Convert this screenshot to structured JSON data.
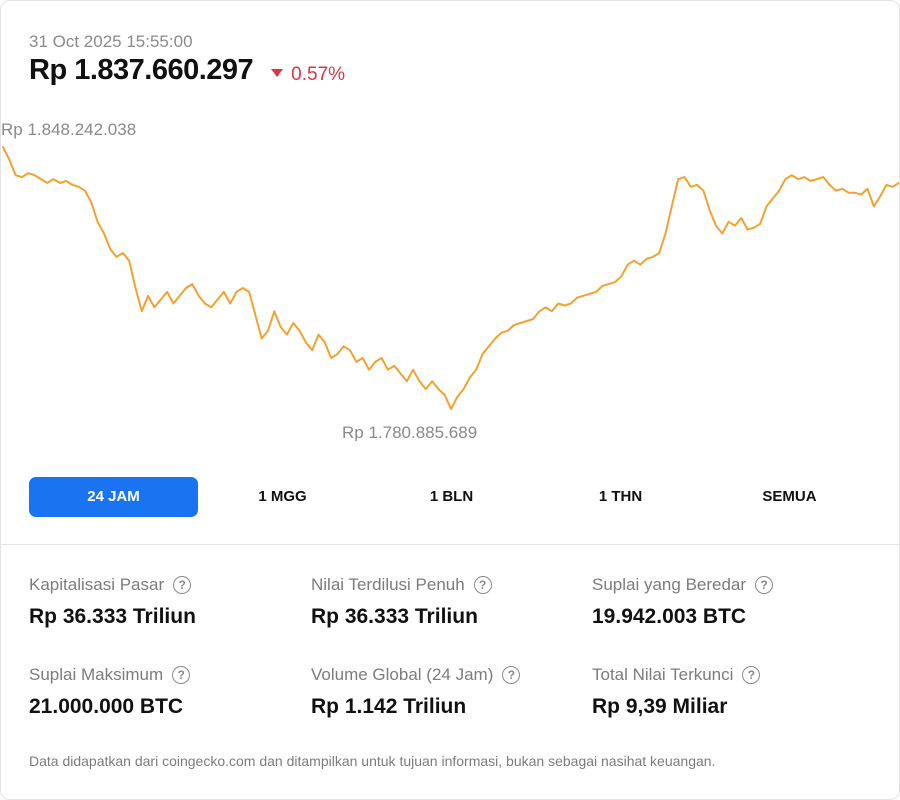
{
  "header": {
    "timestamp": "31 Oct 2025 15:55:00",
    "price": "Rp 1.837.660.297",
    "change": "0.57%",
    "change_direction": "down",
    "change_color": "#dc3545"
  },
  "chart_data": {
    "type": "line",
    "title": "",
    "xlabel": "",
    "ylabel": "",
    "line_color": "#f0a232",
    "high_label": "Rp 1.848.242.038",
    "low_label": "Rp 1.780.885.689",
    "high_value": 1848242038,
    "low_value": 1780885689,
    "grid": false,
    "series": [
      {
        "values": [
          1848242038,
          1845000000,
          1841000000,
          1840500000,
          1841500000,
          1841000000,
          1840000000,
          1839000000,
          1840000000,
          1839000000,
          1839500000,
          1838500000,
          1838000000,
          1837000000,
          1834000000,
          1829000000,
          1826000000,
          1822000000,
          1820000000,
          1821000000,
          1819000000,
          1812000000,
          1806000000,
          1810000000,
          1807000000,
          1809000000,
          1811000000,
          1808000000,
          1810000000,
          1812000000,
          1813000000,
          1810000000,
          1808000000,
          1807000000,
          1809000000,
          1811000000,
          1808000000,
          1811000000,
          1812000000,
          1811000000,
          1805000000,
          1799000000,
          1801000000,
          1806000000,
          1802000000,
          1800000000,
          1803000000,
          1801000000,
          1798000000,
          1796000000,
          1800000000,
          1798000000,
          1794000000,
          1795000000,
          1797000000,
          1796000000,
          1793000000,
          1794000000,
          1791000000,
          1793000000,
          1794000000,
          1791000000,
          1792000000,
          1790000000,
          1788000000,
          1791000000,
          1788000000,
          1786000000,
          1788000000,
          1786000000,
          1784500000,
          1780885689,
          1784000000,
          1786000000,
          1789000000,
          1791000000,
          1795000000,
          1797000000,
          1799000000,
          1800500000,
          1801000000,
          1802500000,
          1803000000,
          1803500000,
          1804000000,
          1806000000,
          1807000000,
          1806000000,
          1808000000,
          1807500000,
          1808000000,
          1809500000,
          1810000000,
          1810500000,
          1811000000,
          1812500000,
          1813000000,
          1813500000,
          1815000000,
          1818000000,
          1819000000,
          1818000000,
          1819500000,
          1820000000,
          1821000000,
          1826000000,
          1833000000,
          1840000000,
          1840500000,
          1838000000,
          1838500000,
          1837000000,
          1832000000,
          1828000000,
          1826000000,
          1829000000,
          1828000000,
          1830000000,
          1827000000,
          1827500000,
          1828500000,
          1833000000,
          1835000000,
          1837000000,
          1840000000,
          1841000000,
          1840000000,
          1840500000,
          1839500000,
          1840000000,
          1840500000,
          1838500000,
          1837000000,
          1837500000,
          1836500000,
          1836500000,
          1836000000,
          1837500000,
          1833000000,
          1835500000,
          1838500000,
          1838000000,
          1839000000
        ]
      }
    ]
  },
  "tabs": [
    {
      "label": "24 JAM",
      "active": true
    },
    {
      "label": "1 MGG",
      "active": false
    },
    {
      "label": "1 BLN",
      "active": false
    },
    {
      "label": "1 THN",
      "active": false
    },
    {
      "label": "SEMUA",
      "active": false
    }
  ],
  "stats": [
    {
      "label": "Kapitalisasi Pasar",
      "value": "Rp 36.333 Triliun"
    },
    {
      "label": "Nilai Terdilusi Penuh",
      "value": "Rp 36.333 Triliun"
    },
    {
      "label": "Suplai yang Beredar",
      "value": "19.942.003 BTC"
    },
    {
      "label": "Suplai Maksimum",
      "value": "21.000.000 BTC"
    },
    {
      "label": "Volume Global (24 Jam)",
      "value": "Rp 1.142 Triliun"
    },
    {
      "label": "Total Nilai Terkunci",
      "value": "Rp 9,39 Miliar"
    }
  ],
  "help_icon_glyph": "?",
  "accent_color": "#1a73f0",
  "footer": {
    "note": "Data didapatkan dari coingecko.com dan ditampilkan untuk tujuan informasi, bukan sebagai nasihat keuangan."
  }
}
